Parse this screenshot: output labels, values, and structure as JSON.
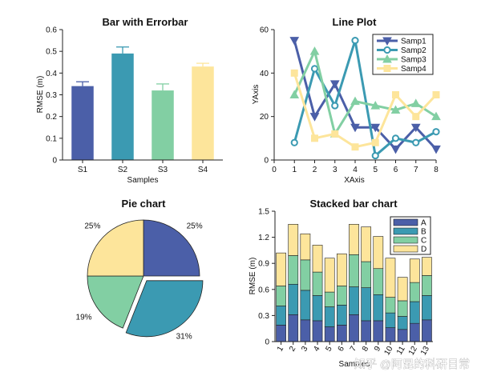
{
  "colors": {
    "c1": "#4b5fa8",
    "c2": "#3b9ab2",
    "c3": "#82cfa3",
    "c4": "#fde59b",
    "edge": "#222222"
  },
  "watermark": "知乎 @阿昆的科研日常",
  "chart_data": [
    {
      "id": "bar",
      "type": "bar",
      "title": "Bar with Errorbar",
      "xlabel": "Samples",
      "ylabel": "RMSE (m)",
      "categories": [
        "S1",
        "S2",
        "S3",
        "S4"
      ],
      "values": [
        0.34,
        0.49,
        0.32,
        0.43
      ],
      "errors": [
        0.02,
        0.03,
        0.03,
        0.015
      ],
      "ylim": [
        0,
        0.6
      ],
      "yticks": [
        "0",
        "0.1",
        "0.2",
        "0.3",
        "0.4",
        "0.5",
        "0.6"
      ],
      "grid": false
    },
    {
      "id": "line",
      "type": "line",
      "title": "Line Plot",
      "xlabel": "XAxis",
      "ylabel": "YAxis",
      "x": [
        1,
        2,
        3,
        4,
        5,
        6,
        7,
        8
      ],
      "xlim": [
        0,
        8
      ],
      "ylim": [
        0,
        60
      ],
      "xticks": [
        "0",
        "1",
        "2",
        "3",
        "4",
        "5",
        "6",
        "7",
        "8"
      ],
      "yticks": [
        "0",
        "20",
        "40",
        "60"
      ],
      "legend_position": "top-right",
      "series": [
        {
          "name": "Samp1",
          "marker": "triangle-down",
          "values": [
            55,
            20,
            35,
            15,
            15,
            5,
            15,
            5
          ]
        },
        {
          "name": "Samp2",
          "marker": "circle",
          "values": [
            8,
            42,
            25,
            55,
            2,
            10,
            8,
            13
          ]
        },
        {
          "name": "Samp3",
          "marker": "triangle-up",
          "values": [
            30,
            50,
            12,
            27,
            25,
            23,
            26,
            20
          ]
        },
        {
          "name": "Samp4",
          "marker": "square",
          "values": [
            40,
            10,
            12,
            6,
            8,
            30,
            20,
            30
          ]
        }
      ]
    },
    {
      "id": "pie",
      "type": "pie",
      "title": "Pie chart",
      "values": [
        25,
        31,
        19,
        25
      ],
      "labels": [
        "25%",
        "31%",
        "19%",
        "25%"
      ],
      "explode": [
        false,
        true,
        false,
        false
      ]
    },
    {
      "id": "stacked",
      "type": "bar",
      "stacked": true,
      "title": "Stacked bar chart",
      "xlabel": "Samples",
      "ylabel": "RMSE (m)",
      "categories": [
        "1",
        "2",
        "3",
        "4",
        "5",
        "6",
        "7",
        "8",
        "9",
        "10",
        "11",
        "12",
        "13"
      ],
      "ylim": [
        0,
        1.5
      ],
      "yticks": [
        "0",
        "0.3",
        "0.6",
        "0.9",
        "1.2",
        "1.5"
      ],
      "legend_position": "top-right",
      "series": [
        {
          "name": "A",
          "values": [
            0.19,
            0.31,
            0.25,
            0.24,
            0.17,
            0.19,
            0.31,
            0.24,
            0.24,
            0.16,
            0.14,
            0.21,
            0.25
          ]
        },
        {
          "name": "B",
          "values": [
            0.22,
            0.35,
            0.34,
            0.29,
            0.23,
            0.23,
            0.32,
            0.38,
            0.3,
            0.17,
            0.15,
            0.25,
            0.28
          ]
        },
        {
          "name": "C",
          "values": [
            0.23,
            0.33,
            0.35,
            0.27,
            0.17,
            0.22,
            0.37,
            0.3,
            0.3,
            0.18,
            0.18,
            0.22,
            0.23
          ]
        },
        {
          "name": "D",
          "values": [
            0.38,
            0.36,
            0.3,
            0.31,
            0.39,
            0.37,
            0.35,
            0.4,
            0.37,
            0.45,
            0.27,
            0.27,
            0.21
          ]
        }
      ]
    }
  ]
}
